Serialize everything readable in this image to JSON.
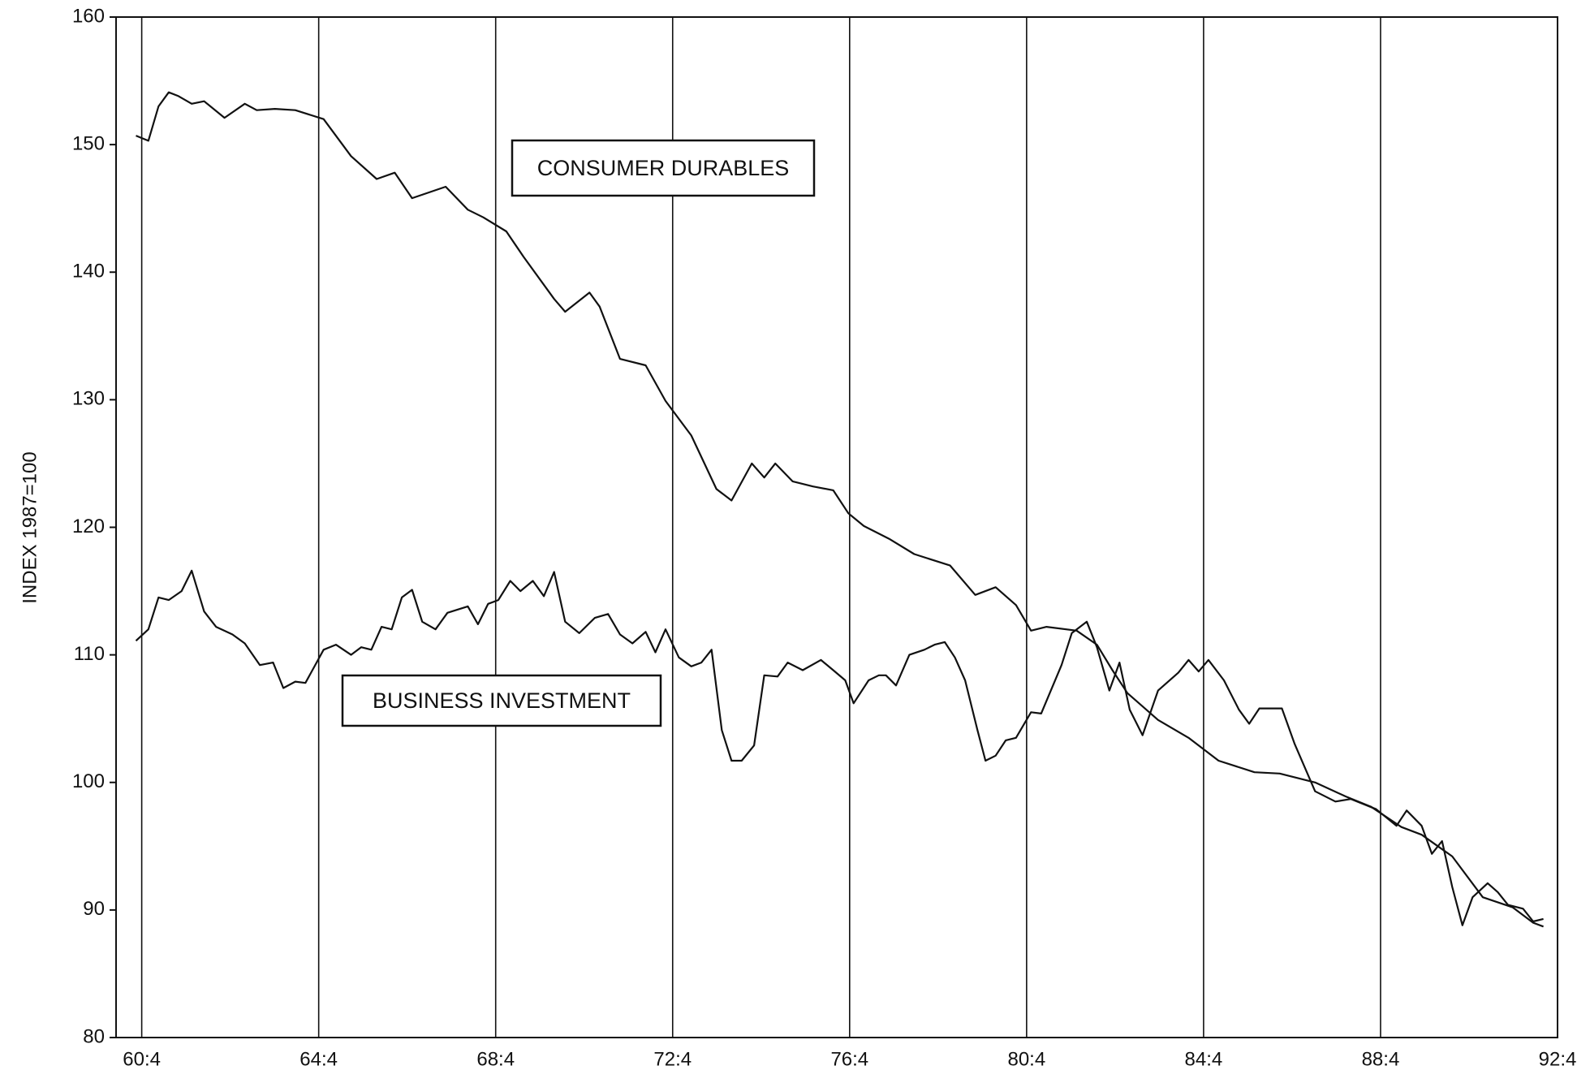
{
  "chart_data": {
    "type": "line",
    "y_label": "INDEX 1987=100",
    "xlim": [
      60.17,
      92.75
    ],
    "xticks": [
      {
        "value": 60.75,
        "label": "60:4"
      },
      {
        "value": 64.75,
        "label": "64:4"
      },
      {
        "value": 68.75,
        "label": "68:4"
      },
      {
        "value": 72.75,
        "label": "72:4"
      },
      {
        "value": 76.75,
        "label": "76:4"
      },
      {
        "value": 80.75,
        "label": "80:4"
      },
      {
        "value": 84.75,
        "label": "84:4"
      },
      {
        "value": 88.75,
        "label": "88:4"
      },
      {
        "value": 92.75,
        "label": "92:4"
      }
    ],
    "ylim": [
      80,
      160
    ],
    "yticks": [
      80,
      90,
      100,
      110,
      120,
      130,
      140,
      150,
      160
    ],
    "grid": true,
    "series": [
      {
        "name": "CONSUMER DURABLES",
        "color": "#111111",
        "x": [
          60.62,
          60.9,
          61.13,
          61.36,
          61.58,
          61.88,
          62.16,
          62.62,
          63.08,
          63.35,
          63.76,
          64.22,
          64.86,
          65.48,
          66.06,
          66.47,
          66.86,
          67.62,
          68.12,
          68.47,
          68.99,
          69.38,
          70.07,
          70.32,
          70.87,
          71.1,
          71.56,
          72.14,
          72.59,
          73.17,
          73.74,
          74.08,
          74.54,
          74.82,
          75.07,
          75.46,
          75.92,
          76.38,
          76.72,
          77.07,
          77.64,
          78.21,
          79.02,
          79.59,
          80.05,
          80.51,
          80.85,
          81.2,
          81.88,
          82.34,
          82.69,
          83.03,
          83.72,
          84.41,
          85.09,
          85.9,
          86.47,
          87.27,
          87.96,
          88.53,
          89.22,
          89.68,
          90.37,
          91.06,
          91.74,
          92.2,
          92.43
        ],
        "values": [
          150.7,
          150.3,
          153.0,
          154.1,
          153.8,
          153.2,
          153.4,
          152.1,
          153.2,
          152.7,
          152.8,
          152.7,
          152.0,
          149.1,
          147.3,
          147.8,
          145.8,
          146.7,
          144.9,
          144.3,
          143.2,
          141.2,
          137.9,
          136.9,
          138.4,
          137.3,
          133.2,
          132.7,
          129.9,
          127.2,
          123.0,
          122.1,
          125.0,
          123.9,
          125.0,
          123.6,
          123.2,
          122.9,
          121.1,
          120.1,
          119.1,
          117.9,
          117.0,
          114.7,
          115.3,
          113.9,
          111.9,
          112.2,
          111.9,
          110.8,
          108.8,
          107.0,
          104.9,
          103.5,
          101.7,
          100.8,
          100.7,
          100.0,
          98.9,
          98.1,
          96.5,
          95.9,
          94.2,
          91.0,
          90.2,
          89.0,
          88.7
        ]
      },
      {
        "name": "BUSINESS INVESTMENT",
        "color": "#111111",
        "x": [
          60.62,
          60.9,
          61.13,
          61.36,
          61.65,
          61.88,
          62.16,
          62.43,
          62.8,
          63.08,
          63.42,
          63.72,
          63.95,
          64.22,
          64.45,
          64.86,
          65.14,
          65.48,
          65.71,
          65.94,
          66.17,
          66.4,
          66.63,
          66.86,
          67.09,
          67.39,
          67.66,
          68.12,
          68.35,
          68.58,
          68.81,
          69.08,
          69.31,
          69.59,
          69.84,
          70.07,
          70.32,
          70.64,
          70.99,
          71.29,
          71.56,
          71.84,
          72.14,
          72.36,
          72.59,
          72.89,
          73.17,
          73.4,
          73.63,
          73.86,
          74.08,
          74.31,
          74.59,
          74.82,
          75.12,
          75.35,
          75.69,
          76.1,
          76.38,
          76.65,
          76.84,
          77.18,
          77.41,
          77.57,
          77.8,
          78.1,
          78.44,
          78.67,
          78.9,
          79.13,
          79.36,
          79.64,
          79.82,
          80.05,
          80.28,
          80.51,
          80.85,
          81.08,
          81.54,
          81.77,
          82.11,
          82.34,
          82.62,
          82.85,
          83.08,
          83.37,
          83.72,
          84.18,
          84.41,
          84.64,
          84.86,
          85.21,
          85.55,
          85.78,
          86.01,
          86.52,
          86.81,
          87.27,
          87.73,
          88.08,
          88.65,
          89.11,
          89.34,
          89.68,
          89.91,
          90.14,
          90.37,
          90.6,
          90.83,
          91.17,
          91.4,
          91.63,
          91.97,
          92.2,
          92.43
        ],
        "values": [
          111.1,
          112.0,
          114.5,
          114.3,
          115.0,
          116.6,
          113.4,
          112.2,
          111.6,
          110.9,
          109.2,
          109.4,
          107.4,
          107.9,
          107.8,
          110.4,
          110.8,
          110.0,
          110.6,
          110.4,
          112.2,
          112.0,
          114.5,
          115.1,
          112.6,
          112.0,
          113.3,
          113.8,
          112.4,
          114.0,
          114.3,
          115.8,
          115.0,
          115.8,
          114.6,
          116.5,
          112.6,
          111.7,
          112.9,
          113.2,
          111.6,
          110.9,
          111.8,
          110.2,
          112.0,
          109.8,
          109.1,
          109.4,
          110.4,
          104.1,
          101.7,
          101.7,
          102.9,
          108.4,
          108.3,
          109.4,
          108.8,
          109.6,
          108.8,
          108.0,
          106.2,
          108.0,
          108.4,
          108.4,
          107.6,
          110.0,
          110.4,
          110.8,
          111.0,
          109.8,
          108.0,
          104.1,
          101.7,
          102.1,
          103.3,
          103.5,
          105.5,
          105.4,
          109.2,
          111.7,
          112.6,
          110.6,
          107.2,
          109.4,
          105.7,
          103.7,
          107.2,
          108.6,
          109.6,
          108.7,
          109.6,
          108.0,
          105.7,
          104.6,
          105.8,
          105.8,
          103.0,
          99.3,
          98.5,
          98.7,
          97.9,
          96.6,
          97.8,
          96.6,
          94.4,
          95.4,
          91.8,
          88.8,
          91.0,
          92.1,
          91.4,
          90.4,
          90.1,
          89.1,
          89.3
        ]
      }
    ]
  }
}
